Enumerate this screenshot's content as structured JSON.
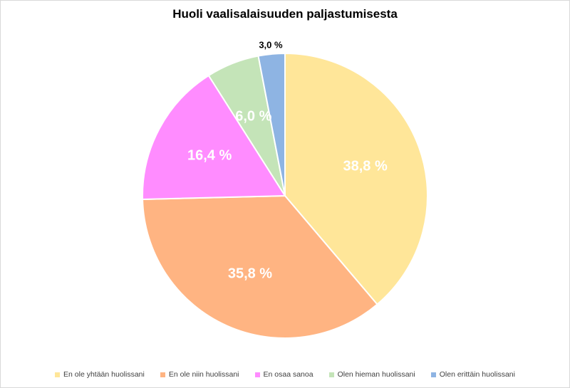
{
  "chart_data": {
    "type": "pie",
    "title": "Huoli vaalisalaisuuden paljastumisesta",
    "categories": [
      "En ole yhtään huolissani",
      "En ole niin huolissani",
      "En osaa sanoa",
      "Olen hieman huolissani",
      "Olen erittäin huolissani"
    ],
    "values": [
      38.8,
      35.8,
      16.4,
      6.0,
      3.0
    ],
    "labels": [
      "38,8 %",
      "35,8 %",
      "16,4 %",
      "6,0 %",
      "3,0 %"
    ],
    "colors": [
      "#FFE699",
      "#FFB482",
      "#FF8CFF",
      "#C4E4B8",
      "#8EB4E3"
    ],
    "legend_position": "bottom"
  }
}
